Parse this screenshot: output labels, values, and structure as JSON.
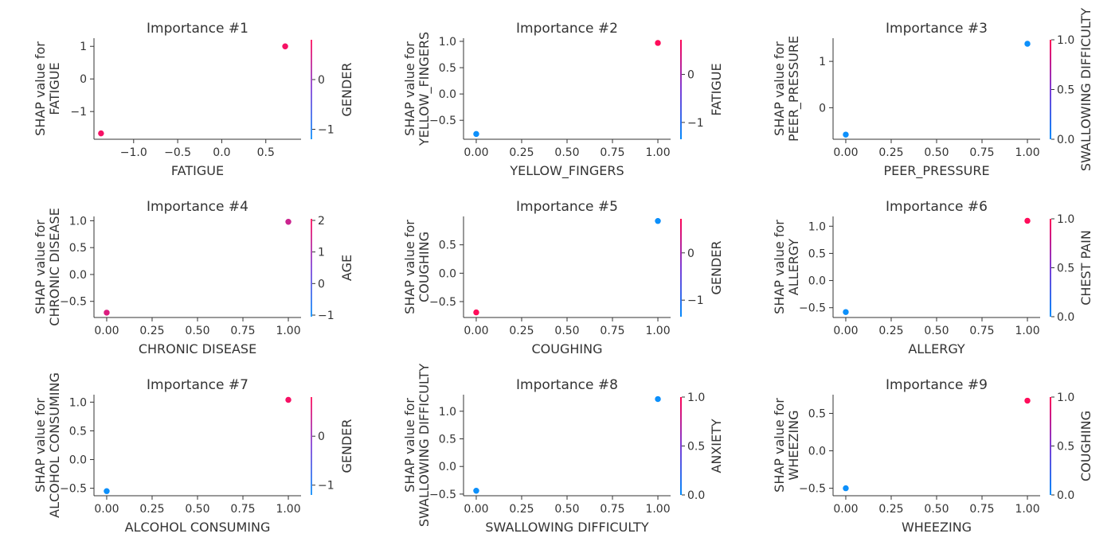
{
  "chart_data": [
    {
      "type": "scatter",
      "title": "Importance #1",
      "xlabel": "FATIGUE",
      "ylabel": [
        "SHAP value for",
        "FATIGUE"
      ],
      "xlim": [
        -1.45,
        0.9
      ],
      "ylim": [
        -1.85,
        1.25
      ],
      "xticks": [
        -1.0,
        -0.5,
        0.0,
        0.5
      ],
      "xtick_labels": [
        "−1.0",
        "−0.5",
        "0.0",
        "0.5"
      ],
      "yticks": [
        -1,
        0,
        1
      ],
      "ytick_labels": [
        "−1",
        "0",
        "1"
      ],
      "points": [
        {
          "x": -1.37,
          "y": -1.67,
          "c": 0.72
        },
        {
          "x": 0.72,
          "y": 1.0,
          "c": 0.72
        }
      ],
      "colorbar": {
        "label": "GENDER",
        "vmin": -1.2,
        "vmax": 0.8,
        "ticks": [
          0,
          -1
        ],
        "tick_labels": [
          "0",
          "−1"
        ],
        "show_bar": false
      }
    },
    {
      "type": "scatter",
      "title": "Importance #2",
      "xlabel": "YELLOW_FINGERS",
      "ylabel": [
        "SHAP value for",
        "YELLOW_FINGERS"
      ],
      "xlim": [
        -0.07,
        1.07
      ],
      "ylim": [
        -0.86,
        1.06
      ],
      "xticks": [
        0.0,
        0.25,
        0.5,
        0.75,
        1.0
      ],
      "xtick_labels": [
        "0.00",
        "0.25",
        "0.50",
        "0.75",
        "1.00"
      ],
      "yticks": [
        -0.5,
        0.0,
        0.5,
        1.0
      ],
      "ytick_labels": [
        "−0.5",
        "0.0",
        "0.5",
        "1.0"
      ],
      "points": [
        {
          "x": 0.0,
          "y": -0.76,
          "c": -1.35
        },
        {
          "x": 1.0,
          "y": 0.97,
          "c": 0.72
        }
      ],
      "colorbar": {
        "label": "FATIGUE",
        "vmin": -1.35,
        "vmax": 0.72,
        "ticks": [
          0,
          -1
        ],
        "tick_labels": [
          "0",
          "−1"
        ],
        "show_bar": true
      }
    },
    {
      "type": "scatter",
      "title": "Importance #3",
      "xlabel": "PEER_PRESSURE",
      "ylabel": [
        "SHAP value for",
        "PEER_PRESSURE"
      ],
      "xlim": [
        -0.07,
        1.07
      ],
      "ylim": [
        -0.68,
        1.5
      ],
      "xticks": [
        0.0,
        0.25,
        0.5,
        0.75,
        1.0
      ],
      "xtick_labels": [
        "0.00",
        "0.25",
        "0.50",
        "0.75",
        "1.00"
      ],
      "yticks": [
        0,
        1
      ],
      "ytick_labels": [
        "0",
        "1"
      ],
      "points": [
        {
          "x": 0.0,
          "y": -0.58,
          "c": 0.0
        },
        {
          "x": 1.0,
          "y": 1.38,
          "c": 0.0
        }
      ],
      "colorbar": {
        "label": "SWALLOWING DIFFICULTY",
        "vmin": 0.0,
        "vmax": 1.0,
        "ticks": [
          1.0,
          0.5,
          0.0
        ],
        "tick_labels": [
          "1.0",
          "0.5",
          "0.0"
        ],
        "show_bar": true
      }
    },
    {
      "type": "scatter",
      "title": "Importance #4",
      "xlabel": "CHRONIC DISEASE",
      "ylabel": [
        "SHAP value for",
        "CHRONIC DISEASE"
      ],
      "xlim": [
        -0.07,
        1.07
      ],
      "ylim": [
        -0.8,
        1.08
      ],
      "xticks": [
        0.0,
        0.25,
        0.5,
        0.75,
        1.0
      ],
      "xtick_labels": [
        "0.00",
        "0.25",
        "0.50",
        "0.75",
        "1.00"
      ],
      "yticks": [
        -0.5,
        0.0,
        0.5,
        1.0
      ],
      "ytick_labels": [
        "−0.5",
        "0.0",
        "0.5",
        "1.0"
      ],
      "points": [
        {
          "x": 0.0,
          "y": -0.71,
          "c": 1.6
        },
        {
          "x": 1.0,
          "y": 0.98,
          "c": 1.4
        }
      ],
      "colorbar": {
        "label": "AGE",
        "vmin": -1.05,
        "vmax": 2.05,
        "ticks": [
          2,
          1,
          0,
          -1
        ],
        "tick_labels": [
          "2",
          "1",
          "0",
          "−1"
        ],
        "show_bar": false
      }
    },
    {
      "type": "scatter",
      "title": "Importance #5",
      "xlabel": "COUGHING",
      "ylabel": [
        "SHAP value for",
        "COUGHING"
      ],
      "xlim": [
        -0.07,
        1.07
      ],
      "ylim": [
        -0.78,
        1.0
      ],
      "xticks": [
        0.0,
        0.25,
        0.5,
        0.75,
        1.0
      ],
      "xtick_labels": [
        "0.00",
        "0.25",
        "0.50",
        "0.75",
        "1.00"
      ],
      "yticks": [
        -0.5,
        0.0,
        0.5
      ],
      "ytick_labels": [
        "−0.5",
        "0.0",
        "0.5"
      ],
      "points": [
        {
          "x": 0.0,
          "y": -0.69,
          "c": 0.72
        },
        {
          "x": 1.0,
          "y": 0.92,
          "c": -1.35
        }
      ],
      "colorbar": {
        "label": "GENDER",
        "vmin": -1.35,
        "vmax": 0.72,
        "ticks": [
          0,
          -1
        ],
        "tick_labels": [
          "0",
          "−1"
        ],
        "show_bar": true
      }
    },
    {
      "type": "scatter",
      "title": "Importance #6",
      "xlabel": "ALLERGY",
      "ylabel": [
        "SHAP value for",
        "ALLERGY"
      ],
      "xlim": [
        -0.07,
        1.07
      ],
      "ylim": [
        -0.68,
        1.18
      ],
      "xticks": [
        0.0,
        0.25,
        0.5,
        0.75,
        1.0
      ],
      "xtick_labels": [
        "0.00",
        "0.25",
        "0.50",
        "0.75",
        "1.00"
      ],
      "yticks": [
        -0.5,
        0.0,
        0.5,
        1.0
      ],
      "ytick_labels": [
        "−0.5",
        "0.0",
        "0.5",
        "1.0"
      ],
      "points": [
        {
          "x": 0.0,
          "y": -0.58,
          "c": 0.0
        },
        {
          "x": 1.0,
          "y": 1.1,
          "c": 1.0
        }
      ],
      "colorbar": {
        "label": "CHEST PAIN",
        "vmin": 0.0,
        "vmax": 1.0,
        "ticks": [
          1.0,
          0.5,
          0.0
        ],
        "tick_labels": [
          "1.0",
          "0.5",
          "0.0"
        ],
        "show_bar": true
      }
    },
    {
      "type": "scatter",
      "title": "Importance #7",
      "xlabel": "ALCOHOL CONSUMING",
      "ylabel": [
        "SHAP value for",
        "ALCOHOL CONSUMING"
      ],
      "xlim": [
        -0.07,
        1.07
      ],
      "ylim": [
        -0.63,
        1.13
      ],
      "xticks": [
        0.0,
        0.25,
        0.5,
        0.75,
        1.0
      ],
      "xtick_labels": [
        "0.00",
        "0.25",
        "0.50",
        "0.75",
        "1.00"
      ],
      "yticks": [
        -0.5,
        0.0,
        0.5,
        1.0
      ],
      "ytick_labels": [
        "−0.5",
        "0.0",
        "0.5",
        "1.0"
      ],
      "points": [
        {
          "x": 0.0,
          "y": -0.55,
          "c": -1.35
        },
        {
          "x": 1.0,
          "y": 1.04,
          "c": 0.72
        }
      ],
      "colorbar": {
        "label": "GENDER",
        "vmin": -1.2,
        "vmax": 0.8,
        "ticks": [
          0,
          -1
        ],
        "tick_labels": [
          "0",
          "−1"
        ],
        "show_bar": false
      }
    },
    {
      "type": "scatter",
      "title": "Importance #8",
      "xlabel": "SWALLOWING DIFFICULTY",
      "ylabel": [
        "SHAP value for",
        "SWALLOWING DIFFICULTY"
      ],
      "xlim": [
        -0.07,
        1.07
      ],
      "ylim": [
        -0.53,
        1.3
      ],
      "xticks": [
        0.0,
        0.25,
        0.5,
        0.75,
        1.0
      ],
      "xtick_labels": [
        "0.00",
        "0.25",
        "0.50",
        "0.75",
        "1.00"
      ],
      "yticks": [
        -0.5,
        0.0,
        0.5,
        1.0
      ],
      "ytick_labels": [
        "−0.5",
        "0.0",
        "0.5",
        "1.0"
      ],
      "points": [
        {
          "x": 0.0,
          "y": -0.44,
          "c": 0.0
        },
        {
          "x": 1.0,
          "y": 1.22,
          "c": 0.0
        }
      ],
      "colorbar": {
        "label": "ANXIETY",
        "vmin": 0.0,
        "vmax": 1.0,
        "ticks": [
          1.0,
          0.5,
          0.0
        ],
        "tick_labels": [
          "1.0",
          "0.5",
          "0.0"
        ],
        "show_bar": true
      }
    },
    {
      "type": "scatter",
      "title": "Importance #9",
      "xlabel": "WHEEZING",
      "ylabel": [
        "SHAP value for",
        "WHEEZING"
      ],
      "xlim": [
        -0.07,
        1.07
      ],
      "ylim": [
        -0.6,
        0.75
      ],
      "xticks": [
        0.0,
        0.25,
        0.5,
        0.75,
        1.0
      ],
      "xtick_labels": [
        "0.00",
        "0.25",
        "0.50",
        "0.75",
        "1.00"
      ],
      "yticks": [
        -0.5,
        0.0,
        0.5
      ],
      "ytick_labels": [
        "−0.5",
        "0.0",
        "0.5"
      ],
      "points": [
        {
          "x": 0.0,
          "y": -0.5,
          "c": 0.0
        },
        {
          "x": 1.0,
          "y": 0.67,
          "c": 1.0
        }
      ],
      "colorbar": {
        "label": "COUGHING",
        "vmin": 0.0,
        "vmax": 1.0,
        "ticks": [
          1.0,
          0.5,
          0.0
        ],
        "tick_labels": [
          "1.0",
          "0.5",
          "0.0"
        ],
        "show_bar": true
      }
    }
  ],
  "colors": {
    "colormap_low": "#008afb",
    "colormap_mid": "#7c3bd6",
    "colormap_high": "#ff0052",
    "axis": "#333333"
  }
}
